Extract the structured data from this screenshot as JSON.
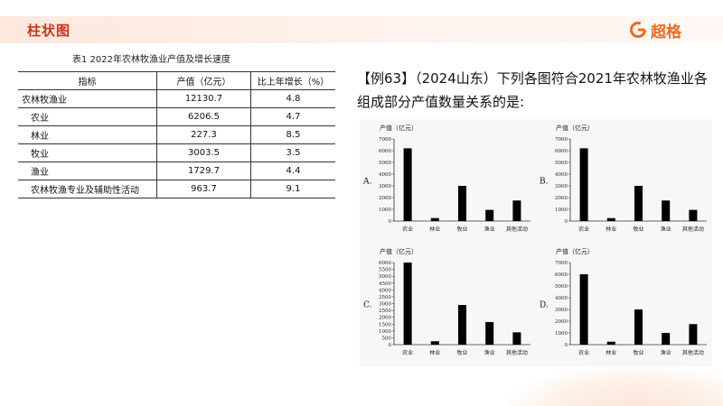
{
  "header": {
    "title": "柱状图",
    "logo_text": "超格",
    "logo_icon": "g-circle-icon",
    "accent": "#ef6a1f"
  },
  "table": {
    "caption": "表1  2022年农林牧渔业产值及增长速度",
    "headers": [
      "指标",
      "产值（亿元）",
      "比上年增长（%）"
    ],
    "rows": [
      {
        "name": "农林牧渔业",
        "value": "12130.7",
        "growth": "4.8",
        "indent": false
      },
      {
        "name": "农业",
        "value": "6206.5",
        "growth": "4.7",
        "indent": true
      },
      {
        "name": "林业",
        "value": "227.3",
        "growth": "8.5",
        "indent": true
      },
      {
        "name": "牧业",
        "value": "3003.5",
        "growth": "3.5",
        "indent": true
      },
      {
        "name": "渔业",
        "value": "1729.7",
        "growth": "4.4",
        "indent": true
      },
      {
        "name": "农林牧渔专业及辅助性活动",
        "value": "963.7",
        "growth": "9.1",
        "indent": true
      }
    ]
  },
  "question": {
    "text": "【例63】（2024山东）下列各图符合2021年农林牧渔业各组成部分产值数量关系的是:"
  },
  "chart_data": [
    {
      "type": "bar",
      "option": "A.",
      "ylabel": "产值（亿元）",
      "categories": [
        "农业",
        "林业",
        "牧业",
        "渔业",
        "其他活动"
      ],
      "values": [
        6200,
        250,
        3000,
        950,
        1750
      ],
      "ylim": [
        0,
        7000
      ],
      "yticks": [
        0,
        1000,
        2000,
        3000,
        4000,
        5000,
        6000,
        7000
      ]
    },
    {
      "type": "bar",
      "option": "B.",
      "ylabel": "产值（亿元）",
      "categories": [
        "农业",
        "林业",
        "牧业",
        "渔业",
        "其他活动"
      ],
      "values": [
        6200,
        250,
        3000,
        1750,
        950
      ],
      "ylim": [
        0,
        7000
      ],
      "yticks": [
        0,
        1000,
        2000,
        3000,
        4000,
        5000,
        6000,
        7000
      ]
    },
    {
      "type": "bar",
      "option": "C.",
      "ylabel": "产值（亿元）",
      "categories": [
        "农业",
        "林业",
        "牧业",
        "渔业",
        "其他活动"
      ],
      "values": [
        6000,
        250,
        2900,
        1650,
        900
      ],
      "ylim": [
        0,
        6000
      ],
      "yticks": [
        0,
        500,
        1000,
        1500,
        2000,
        2500,
        3000,
        3500,
        4000,
        4500,
        5000,
        5500,
        6000
      ]
    },
    {
      "type": "bar",
      "option": "D.",
      "ylabel": "产值（亿元）",
      "categories": [
        "农业",
        "林业",
        "牧业",
        "渔业",
        "其他活动"
      ],
      "values": [
        6000,
        250,
        3000,
        1000,
        1750
      ],
      "ylim": [
        0,
        7000
      ],
      "yticks": [
        0,
        1000,
        2000,
        3000,
        4000,
        5000,
        6000,
        7000
      ]
    }
  ]
}
